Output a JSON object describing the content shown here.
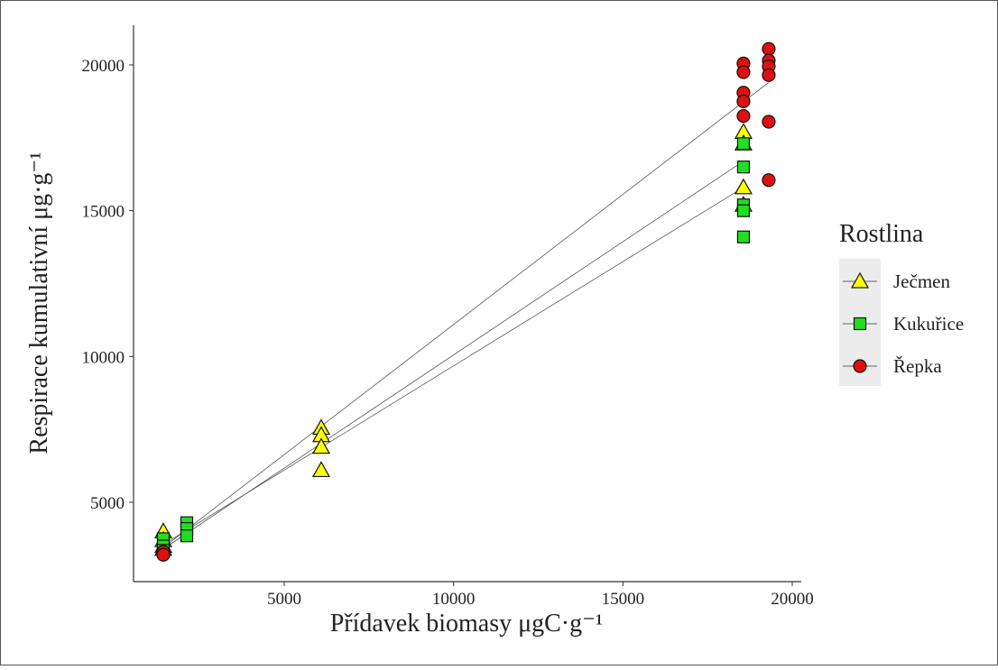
{
  "chart_data": {
    "type": "scatter",
    "x_label": "Přídavek biomasy μgC·g⁻¹",
    "y_label": "Respirace kumulativní μg·g⁻¹",
    "legend_title": "Rostlina",
    "legend_position": "right",
    "xlim": [
      551,
      20266
    ],
    "ylim": [
      2279,
      21360
    ],
    "xticks": [
      5000,
      10000,
      15000,
      20000
    ],
    "yticks": [
      5000,
      10000,
      15000,
      20000
    ],
    "grid": false,
    "series": [
      {
        "name": "Ječmen",
        "color": "#ffff00",
        "marker": "triangle",
        "x": [
          1430,
          1430,
          1430,
          1430,
          6092,
          6092,
          6092,
          6092,
          18559,
          18559,
          18559,
          18559
        ],
        "values": [
          4000,
          3700,
          3500,
          3400,
          7550,
          7300,
          6900,
          6100,
          17700,
          17300,
          15800,
          15200
        ],
        "fit": {
          "x": [
            1430,
            18559
          ],
          "y": [
            3400,
            16700
          ]
        }
      },
      {
        "name": "Kukuřice",
        "color": "#22dd22",
        "marker": "square",
        "x": [
          1430,
          1430,
          1430,
          2123,
          2123,
          2123,
          18559,
          18559,
          18559,
          18559,
          18559
        ],
        "values": [
          3750,
          3500,
          3350,
          4300,
          4100,
          3850,
          17300,
          16500,
          15200,
          15000,
          14100
        ],
        "fit": {
          "x": [
            1430,
            18559
          ],
          "y": [
            3550,
            15800
          ]
        }
      },
      {
        "name": "Řepka",
        "color": "#dd1111",
        "marker": "circle",
        "x": [
          1430,
          1430,
          18559,
          18559,
          18559,
          18559,
          18559,
          19305,
          19305,
          19305,
          19305,
          19305,
          19305
        ],
        "values": [
          3300,
          3200,
          20050,
          19750,
          19050,
          18750,
          18250,
          20550,
          20150,
          19950,
          19650,
          18050,
          16050
        ],
        "fit": {
          "x": [
            1430,
            19305
          ],
          "y": [
            3450,
            19400
          ]
        }
      }
    ]
  }
}
